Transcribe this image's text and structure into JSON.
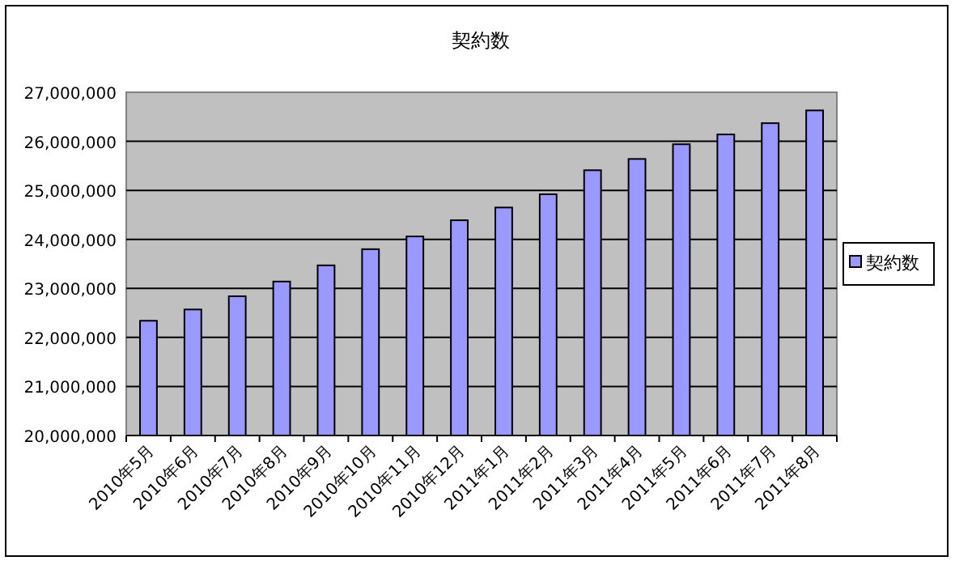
{
  "chart_data": {
    "type": "bar",
    "title": "契約数",
    "categories": [
      "2010年5月",
      "2010年6月",
      "2010年7月",
      "2010年8月",
      "2010年9月",
      "2010年10月",
      "2010年11月",
      "2010年12月",
      "2011年1月",
      "2011年2月",
      "2011年3月",
      "2011年4月",
      "2011年5月",
      "2011年6月",
      "2011年7月",
      "2011年8月"
    ],
    "series": [
      {
        "name": "契約数",
        "color": "#9999ff",
        "values": [
          22340000,
          22570000,
          22840000,
          23140000,
          23470000,
          23800000,
          24060000,
          24390000,
          24650000,
          24920000,
          25410000,
          25640000,
          25940000,
          26140000,
          26370000,
          26630000
        ]
      }
    ],
    "ylim": [
      20000000,
      27000000
    ],
    "yticks": [
      {
        "value": 20000000,
        "label": "20,000,000"
      },
      {
        "value": 21000000,
        "label": "21,000,000"
      },
      {
        "value": 22000000,
        "label": "22,000,000"
      },
      {
        "value": 23000000,
        "label": "23,000,000"
      },
      {
        "value": 24000000,
        "label": "24,000,000"
      },
      {
        "value": 25000000,
        "label": "25,000,000"
      },
      {
        "value": 26000000,
        "label": "26,000,000"
      },
      {
        "value": 27000000,
        "label": "27,000,000"
      }
    ],
    "grid": "y",
    "legend": "right"
  }
}
